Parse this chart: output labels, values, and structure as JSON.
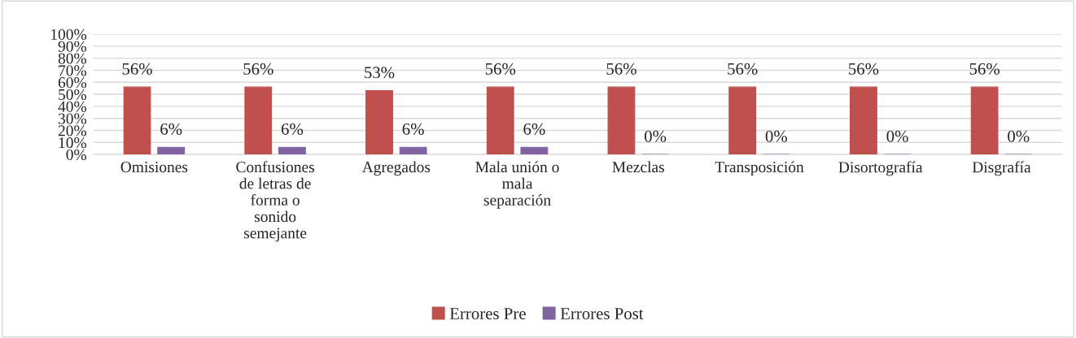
{
  "chart_data": {
    "type": "bar",
    "categories": [
      "Omisiones",
      "Confusiones\nde letras de\nforma o\nsonido\nsemejante",
      "Agregados",
      "Mala unión o\nmala\nseparación",
      "Mezclas",
      "Transposición",
      "Disortografía",
      "Disgrafía"
    ],
    "series": [
      {
        "name": "Errores Pre",
        "color": "#c0504d",
        "values": [
          56,
          56,
          53,
          56,
          56,
          56,
          56,
          56
        ],
        "value_labels": [
          "56%",
          "56%",
          "53%",
          "56%",
          "56%",
          "56%",
          "56%",
          "56%"
        ]
      },
      {
        "name": "Errores Post",
        "color": "#8064a2",
        "values": [
          6,
          6,
          6,
          6,
          0,
          0,
          0,
          0
        ],
        "value_labels": [
          "6%",
          "6%",
          "6%",
          "6%",
          "0%",
          "0%",
          "0%",
          "0%"
        ]
      }
    ],
    "ylim": [
      0,
      100
    ],
    "yticks": [
      {
        "value": 0,
        "label": "0%"
      },
      {
        "value": 10,
        "label": "10%"
      },
      {
        "value": 20,
        "label": "20%"
      },
      {
        "value": 30,
        "label": "30%"
      },
      {
        "value": 40,
        "label": "40%"
      },
      {
        "value": 50,
        "label": "50%"
      },
      {
        "value": 60,
        "label": "60%"
      },
      {
        "value": 70,
        "label": "70%"
      },
      {
        "value": 80,
        "label": "80%"
      },
      {
        "value": 90,
        "label": "90%"
      },
      {
        "value": 100,
        "label": "100%"
      }
    ],
    "grid": "y",
    "legend": "bottom"
  }
}
